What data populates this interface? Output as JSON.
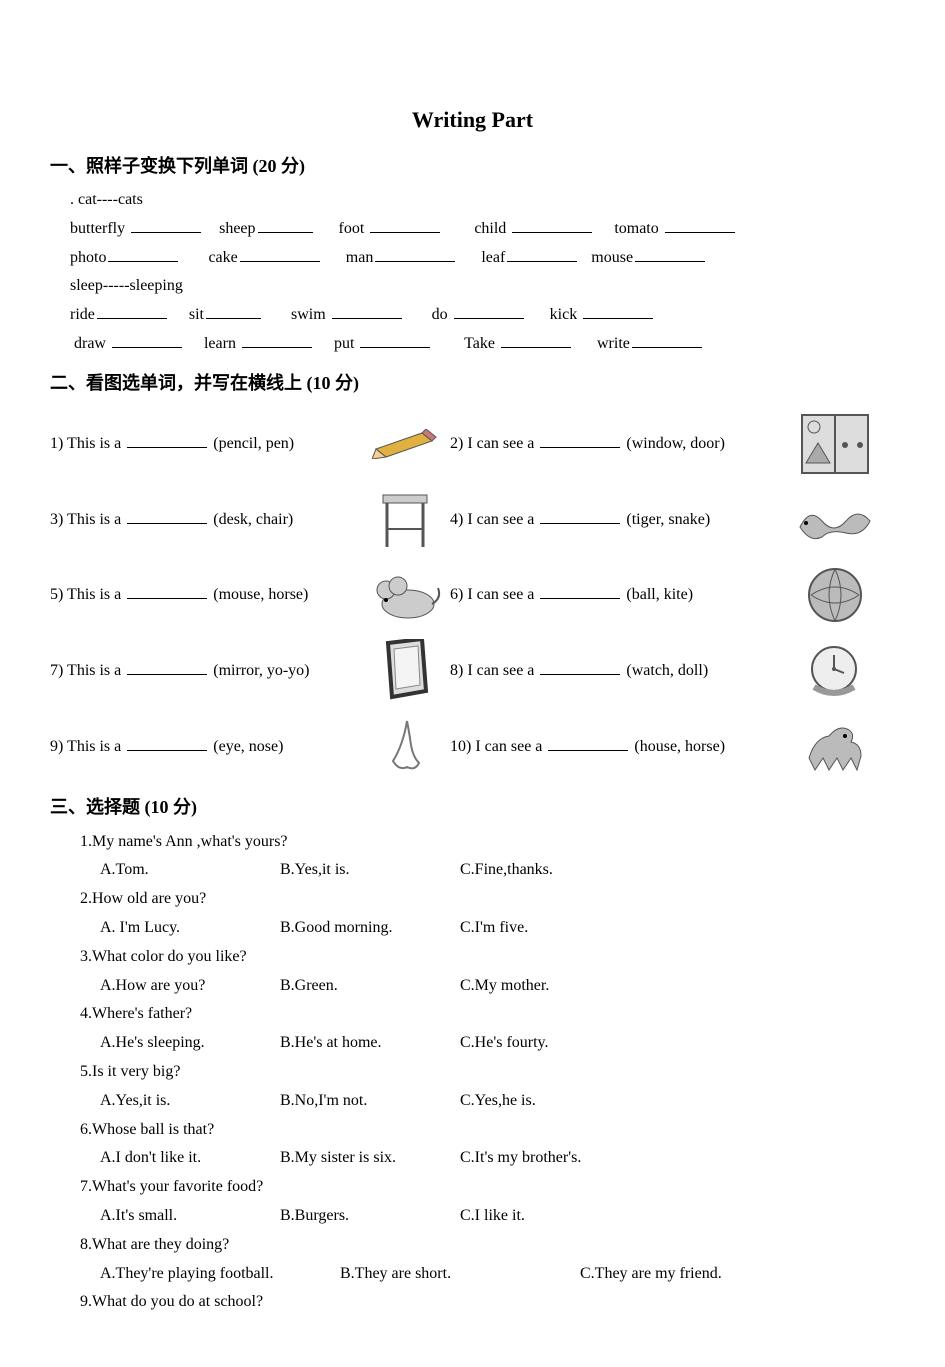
{
  "title": "Writing  Part",
  "section1": {
    "header": "一、照样子变换下列单词   (20 分)",
    "example1": ". cat----cats",
    "row1": {
      "w1": "butterfly",
      "w2": "sheep",
      "w3": "foot",
      "w4": "child",
      "w5": "tomato"
    },
    "row2": {
      "w1": "photo",
      "w2": "cake",
      "w3": "man",
      "w4": "leaf",
      "w5": "mouse"
    },
    "example2": "sleep-----sleeping",
    "row3": {
      "w1": "ride",
      "w2": "sit",
      "w3": "swim",
      "w4": "do",
      "w5": "kick"
    },
    "row4": {
      "w1": "draw",
      "w2": "learn",
      "w3": "put",
      "w4": "Take",
      "w5": "write"
    }
  },
  "section2": {
    "header": "二、看图选单词，并写在横线上   (10 分)",
    "items": [
      {
        "n": "1)",
        "leftA": "This is a",
        "leftB": "(pencil, pen)",
        "rn": "2)",
        "rightA": "I can see a",
        "rightB": "(window, door)",
        "iconL": "pencil",
        "iconR": "window"
      },
      {
        "n": "3)",
        "leftA": "This is a",
        "leftB": "(desk, chair)",
        "rn": "4)",
        "rightA": "I can see   a",
        "rightB": "(tiger, snake)",
        "iconL": "desk",
        "iconR": "snake"
      },
      {
        "n": "5)",
        "leftA": "This is a",
        "leftB": "(mouse, horse)",
        "rn": "6)",
        "rightA": "I can see   a",
        "rightB": "(ball,    kite)",
        "iconL": "mouse",
        "iconR": "ball"
      },
      {
        "n": "7)",
        "leftA": "This is a",
        "leftB": "(mirror, yo-yo)",
        "rn": "8)",
        "rightA": "I can see   a",
        "rightB": "(watch, doll)",
        "iconL": "mirror",
        "iconR": "watch"
      },
      {
        "n": "9)",
        "leftA": "This is a",
        "leftB": "(eye, nose)",
        "rn": "10)",
        "rightA": "I can see   a",
        "rightB": "(house, horse)",
        "iconL": "nose",
        "iconR": "horse"
      }
    ]
  },
  "section3": {
    "header": "三、选择题   (10 分)",
    "questions": [
      {
        "q": "1.My name's Ann ,what's yours?",
        "opts": [
          "A.Tom.",
          "B.Yes,it is.",
          "C.Fine,thanks."
        ]
      },
      {
        "q": "2.How old are you?",
        "opts": [
          "A. I'm Lucy.",
          "B.Good morning.",
          "C.I'm five."
        ]
      },
      {
        "q": "3.What color do you like?",
        "opts": [
          "A.How are you?",
          "B.Green.",
          "C.My mother."
        ]
      },
      {
        "q": "4.Where's father?",
        "opts": [
          "A.He's sleeping.",
          "B.He's at home.",
          "C.He's fourty."
        ]
      },
      {
        "q": "5.Is it very big?",
        "opts": [
          "A.Yes,it is.",
          "B.No,I'm not.",
          "C.Yes,he is."
        ]
      },
      {
        "q": "6.Whose ball is that?",
        "opts": [
          "A.I don't like it.",
          "B.My sister is six.",
          "C.It's my brother's."
        ]
      },
      {
        "q": "7.What's your favorite food?",
        "opts": [
          "A.It's small.",
          "B.Burgers.",
          "C.I like it."
        ]
      },
      {
        "q": "8.What are they doing?",
        "opts": [
          "A.They're playing football.",
          "B.They are short.",
          "C.They are my friend."
        ]
      },
      {
        "q": "9.What do you do at school?",
        "opts": []
      }
    ]
  },
  "icons": {
    "pencil": {
      "svg": "<svg width='66' height='30' viewBox='0 0 66 30'><polygon points='4,20 50,4 60,12 14,28' fill='#e0b040' stroke='#555'/><polygon points='4,20 14,28 0,30' fill='#f5d090' stroke='#555'/><polygon points='50,4 60,12 64,8 54,0' fill='#c77' stroke='#555'/></svg>"
    },
    "window": {
      "svg": "<svg width='70' height='62' viewBox='0 0 70 62'><rect x='2' y='2' width='66' height='58' fill='#ddd' stroke='#555' stroke-width='2'/><line x1='35' y1='2' x2='35' y2='60' stroke='#555' stroke-width='2'/><circle cx='14' cy='14' r='6' fill='none' stroke='#555'/><path d='M6 50 L18 30 L30 50 Z' fill='#aaa' stroke='#555'/><circle cx='45' cy='32' r='3' fill='#555'/><circle cx='60' cy='32' r='3' fill='#555'/></svg>"
    },
    "desk": {
      "svg": "<svg width='60' height='62' viewBox='0 0 60 62'><rect x='8' y='6' width='44' height='8' fill='#ccc' stroke='#555'/><line x1='12' y1='14' x2='12' y2='58' stroke='#555' stroke-width='3'/><line x1='48' y1='14' x2='48' y2='58' stroke='#555' stroke-width='3'/><line x1='12' y1='40' x2='48' y2='40' stroke='#555' stroke-width='2'/></svg>"
    },
    "snake": {
      "svg": "<svg width='78' height='46' viewBox='0 0 78 46'><path d='M4 30 Q14 10 26 24 Q38 38 50 24 Q62 10 74 24 Q66 40 50 36 Q34 32 26 40 Q14 46 4 30 Z' fill='#bbb' stroke='#555'/><circle cx='10' cy='26' r='2' fill='#000'/></svg>"
    },
    "mouse": {
      "svg": "<svg width='74' height='50' viewBox='0 0 74 50'><ellipse cx='40' cy='34' rx='26' ry='14' fill='#ccc' stroke='#555'/><circle cx='18' cy='20' r='9' fill='#ccc' stroke='#555'/><circle cx='30' cy='16' r='9' fill='#ccc' stroke='#555'/><path d='M64 34 Q74 28 70 18' fill='none' stroke='#555' stroke-width='2'/><circle cx='18' cy='30' r='2' fill='#000'/></svg>"
    },
    "ball": {
      "svg": "<svg width='60' height='60' viewBox='0 0 60 60'><circle cx='30' cy='30' r='26' fill='#bbb' stroke='#555' stroke-width='2'/><path d='M6 30 Q30 14 54 30 M6 30 Q30 46 54 30 M30 4 Q18 30 30 56 M30 4 Q42 30 30 56' fill='none' stroke='#555'/></svg>"
    },
    "mirror": {
      "svg": "<svg width='50' height='64' viewBox='0 0 50 64'><polygon points='8,4 42,0 46,52 12,58' fill='#ddd' stroke='#333' stroke-width='4'/><polygon points='14,10 38,7 40,46 16,50' fill='#f4f4f4' stroke='#888'/></svg>"
    },
    "watch": {
      "svg": "<svg width='62' height='56' viewBox='0 0 62 56'><circle cx='30' cy='26' r='22' fill='#eee' stroke='#555' stroke-width='2'/><line x1='30' y1='26' x2='30' y2='12' stroke='#555' stroke-width='2'/><line x1='30' y1='26' x2='40' y2='30' stroke='#555' stroke-width='2'/><circle cx='30' cy='26' r='2' fill='#555'/><path d='M10 44 Q30 56 50 44' fill='none' stroke='#999' stroke-width='6'/></svg>"
    },
    "nose": {
      "svg": "<svg width='44' height='60' viewBox='0 0 44 60'><path d='M24 4 Q20 28 10 44 Q16 54 24 50 Q32 54 36 46 Q30 40 28 28 Q26 14 24 4' fill='none' stroke='#777' stroke-width='2'/></svg>"
    },
    "horse": {
      "svg": "<svg width='72' height='58' viewBox='0 0 72 58'><path d='M10 40 Q16 20 30 18 Q40 6 50 12 Q56 16 52 24 Q62 26 62 38 L58 52 L52 40 L44 52 L38 40 L30 52 L24 40 L16 52 Z' fill='#bbb' stroke='#555'/><circle cx='46' cy='18' r='2' fill='#000'/></svg>"
    }
  }
}
